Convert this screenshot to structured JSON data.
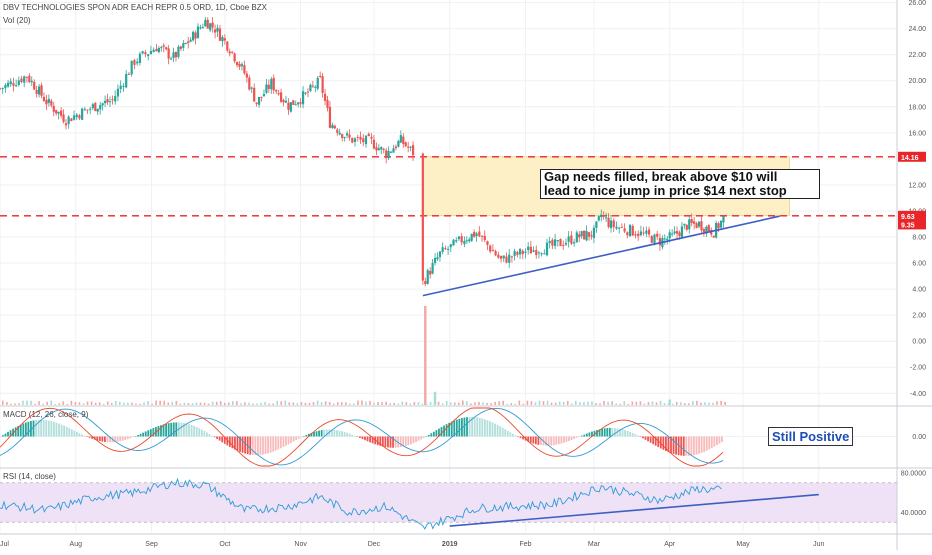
{
  "header": {
    "title": "DBV TECHNOLOGIES SPON ADR EACH REPR 0.5 ORD, 1D, Cboe BZX",
    "vol_label": "Vol (20)",
    "macd_label": "MACD (12, 26, close, 9)",
    "rsi_label": "RSI (14, close)"
  },
  "annotations": {
    "gap_note_line1": "Gap needs filled, break above $10 will",
    "gap_note_line2": "lead to nice jump in price $14 next stop",
    "macd_note": "Still Positive"
  },
  "colors": {
    "up": "#26a69a",
    "down": "#ef5350",
    "line": "#3d5fc4",
    "dashed": "#e8262a",
    "gapbox": "#fdf0c7",
    "rsi_band": "#efe2f7",
    "rsi_line": "#2f9bd6",
    "macd_line": "#e84a2c",
    "signal_line": "#2f9bd6"
  },
  "chart_data": [
    {
      "type": "candlestick",
      "ylim": [
        -4.9,
        26.2
      ],
      "y_ticks": [
        "26.00",
        "24.00",
        "22.00",
        "20.00",
        "18.00",
        "16.00",
        "14.00",
        "12.00",
        "10.00",
        "8.00",
        "6.00",
        "4.00",
        "2.00",
        "0.00",
        "-2.00",
        "-4.00"
      ],
      "x_ticks": [
        "Jul",
        "Aug",
        "Sep",
        "Oct",
        "Nov",
        "Dec",
        "2019",
        "Feb",
        "Mar",
        "Apr",
        "May",
        "Jun"
      ],
      "price_levels": [
        {
          "label": "14.16",
          "value": 14.16
        },
        {
          "label": "9.63",
          "value": 9.63
        },
        {
          "label": "9.35",
          "value": 9.35
        }
      ],
      "close_series": [
        {
          "date": "2018-07-01",
          "close": 19.4
        },
        {
          "date": "2018-07-12",
          "close": 20.4
        },
        {
          "date": "2018-07-20",
          "close": 18.4
        },
        {
          "date": "2018-07-28",
          "close": 17.0
        },
        {
          "date": "2018-08-08",
          "close": 18.0
        },
        {
          "date": "2018-08-16",
          "close": 18.5
        },
        {
          "date": "2018-08-25",
          "close": 21.5
        },
        {
          "date": "2018-09-03",
          "close": 22.6
        },
        {
          "date": "2018-09-10",
          "close": 21.8
        },
        {
          "date": "2018-09-18",
          "close": 23.4
        },
        {
          "date": "2018-09-23",
          "close": 24.6
        },
        {
          "date": "2018-09-27",
          "close": 24.0
        },
        {
          "date": "2018-10-03",
          "close": 22.5
        },
        {
          "date": "2018-10-09",
          "close": 20.6
        },
        {
          "date": "2018-10-14",
          "close": 18.3
        },
        {
          "date": "2018-10-20",
          "close": 19.8
        },
        {
          "date": "2018-10-27",
          "close": 18.1
        },
        {
          "date": "2018-11-03",
          "close": 18.9
        },
        {
          "date": "2018-11-09",
          "close": 20.0
        },
        {
          "date": "2018-11-13",
          "close": 16.8
        },
        {
          "date": "2018-11-21",
          "close": 15.5
        },
        {
          "date": "2018-11-30",
          "close": 15.3
        },
        {
          "date": "2018-12-06",
          "close": 14.4
        },
        {
          "date": "2018-12-12",
          "close": 15.4
        },
        {
          "date": "2018-12-18",
          "close": 14.3
        },
        {
          "date": "2018-12-21",
          "close": 4.5
        },
        {
          "date": "2018-12-28",
          "close": 6.7
        },
        {
          "date": "2019-01-07",
          "close": 7.9
        },
        {
          "date": "2019-01-12",
          "close": 8.3
        },
        {
          "date": "2019-01-22",
          "close": 6.2
        },
        {
          "date": "2019-02-01",
          "close": 6.9
        },
        {
          "date": "2019-02-12",
          "close": 7.3
        },
        {
          "date": "2019-02-22",
          "close": 8.0
        },
        {
          "date": "2019-03-01",
          "close": 8.3
        },
        {
          "date": "2019-03-04",
          "close": 9.7
        },
        {
          "date": "2019-03-08",
          "close": 8.9
        },
        {
          "date": "2019-03-18",
          "close": 8.4
        },
        {
          "date": "2019-03-28",
          "close": 7.7
        },
        {
          "date": "2019-04-02",
          "close": 8.0
        },
        {
          "date": "2019-04-08",
          "close": 8.9
        },
        {
          "date": "2019-04-13",
          "close": 9.0
        },
        {
          "date": "2019-04-19",
          "close": 8.4
        },
        {
          "date": "2019-04-23",
          "close": 9.4
        }
      ],
      "volume_profile": [
        {
          "date": "2018-12-21",
          "volume": 0.0
        },
        {
          "date": "2018-12-22",
          "volume": 0.9
        },
        {
          "date": "2018-12-26",
          "volume": 0.12
        },
        {
          "date": "2019-04-01",
          "volume": 0.05
        }
      ],
      "trendline": {
        "from": {
          "date": "2018-12-21",
          "value": 3.5
        },
        "to": {
          "date": "2019-05-16",
          "value": 9.6
        }
      },
      "gap_zone": {
        "from_date": "2018-12-21",
        "to_date": "2019-05-20",
        "low": 9.63,
        "high": 14.16
      }
    },
    {
      "type": "histogram",
      "name": "MACD (12, 26, close, 9)",
      "ylim": [
        -1.5,
        1.5
      ],
      "y_ticks": [
        "0.00"
      ]
    },
    {
      "type": "line",
      "name": "RSI (14, close)",
      "ylim": [
        20,
        85
      ],
      "y_ticks": [
        "80.0000",
        "40.0000"
      ],
      "band": [
        30,
        70
      ],
      "values": [
        {
          "date": "2018-07-01",
          "value": 48
        },
        {
          "date": "2018-07-20",
          "value": 42
        },
        {
          "date": "2018-08-08",
          "value": 55
        },
        {
          "date": "2018-08-25",
          "value": 60
        },
        {
          "date": "2018-09-10",
          "value": 70
        },
        {
          "date": "2018-09-23",
          "value": 68
        },
        {
          "date": "2018-10-09",
          "value": 42
        },
        {
          "date": "2018-10-27",
          "value": 46
        },
        {
          "date": "2018-11-09",
          "value": 56
        },
        {
          "date": "2018-11-21",
          "value": 40
        },
        {
          "date": "2018-12-06",
          "value": 46
        },
        {
          "date": "2018-12-21",
          "value": 24
        },
        {
          "date": "2019-01-12",
          "value": 44
        },
        {
          "date": "2019-02-12",
          "value": 48
        },
        {
          "date": "2019-03-04",
          "value": 66
        },
        {
          "date": "2019-03-28",
          "value": 52
        },
        {
          "date": "2019-04-13",
          "value": 64
        },
        {
          "date": "2019-04-23",
          "value": 62
        }
      ],
      "trendline": {
        "from": {
          "date": "2019-01-01",
          "value": 26
        },
        "to": {
          "date": "2019-06-01",
          "value": 58
        }
      }
    }
  ]
}
